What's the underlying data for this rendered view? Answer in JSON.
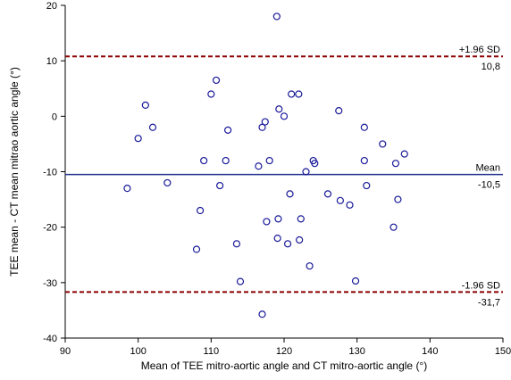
{
  "chart_data": {
    "type": "scatter",
    "xlabel": "Mean of TEE mitro-aortic angle and CT mitro-aortic angle (°)",
    "ylabel": "TEE mean - CT mean mitrao aortic angle (°)",
    "xlim": [
      90,
      150
    ],
    "ylim": [
      -40,
      20
    ],
    "xticks": [
      "90",
      "100",
      "110",
      "120",
      "130",
      "140",
      "150"
    ],
    "yticks": [
      "20",
      "10",
      "0",
      "-10",
      "-20",
      "-30",
      "-40"
    ],
    "grid": false,
    "colors": {
      "points": "#1a1a99",
      "mean_line": "#1f2f8f",
      "sd_lines": "#8b0000"
    },
    "reference_lines": [
      {
        "label": "+1.96 SD",
        "value_text": "10,8",
        "y": 10.8,
        "style": "dashed"
      },
      {
        "label": "Mean",
        "value_text": "-10,5",
        "y": -10.5,
        "style": "solid"
      },
      {
        "label": "-1.96 SD",
        "value_text": "-31,7",
        "y": -31.7,
        "style": "dashed"
      }
    ],
    "points": [
      [
        98.5,
        -13
      ],
      [
        100,
        -4
      ],
      [
        101,
        2
      ],
      [
        102,
        -2
      ],
      [
        104,
        -12
      ],
      [
        108,
        -24
      ],
      [
        108.5,
        -17
      ],
      [
        109,
        -8
      ],
      [
        110,
        4
      ],
      [
        110.7,
        6.5
      ],
      [
        111.2,
        -12.5
      ],
      [
        112,
        -8
      ],
      [
        112.3,
        -2.5
      ],
      [
        113.5,
        -23
      ],
      [
        114,
        -29.8
      ],
      [
        116.5,
        -9
      ],
      [
        117,
        -2
      ],
      [
        117,
        -35.7
      ],
      [
        117.4,
        -1
      ],
      [
        117.6,
        -19
      ],
      [
        118,
        -8
      ],
      [
        119,
        18
      ],
      [
        119.1,
        -22
      ],
      [
        119.2,
        -18.5
      ],
      [
        119.3,
        1.3
      ],
      [
        120,
        0
      ],
      [
        120.5,
        -23
      ],
      [
        120.8,
        -14
      ],
      [
        121,
        4
      ],
      [
        122,
        4
      ],
      [
        122.1,
        -22.3
      ],
      [
        122.3,
        -18.5
      ],
      [
        123,
        -10
      ],
      [
        123.5,
        -27
      ],
      [
        124,
        -8
      ],
      [
        124.2,
        -8.5
      ],
      [
        126,
        -14
      ],
      [
        127.5,
        1
      ],
      [
        127.7,
        -15.2
      ],
      [
        129,
        -16
      ],
      [
        129.8,
        -29.7
      ],
      [
        131,
        -2
      ],
      [
        131,
        -8
      ],
      [
        131.3,
        -12.5
      ],
      [
        133.5,
        -5
      ],
      [
        135,
        -20
      ],
      [
        135.3,
        -8.5
      ],
      [
        135.6,
        -15
      ],
      [
        136.5,
        -6.8
      ]
    ]
  }
}
